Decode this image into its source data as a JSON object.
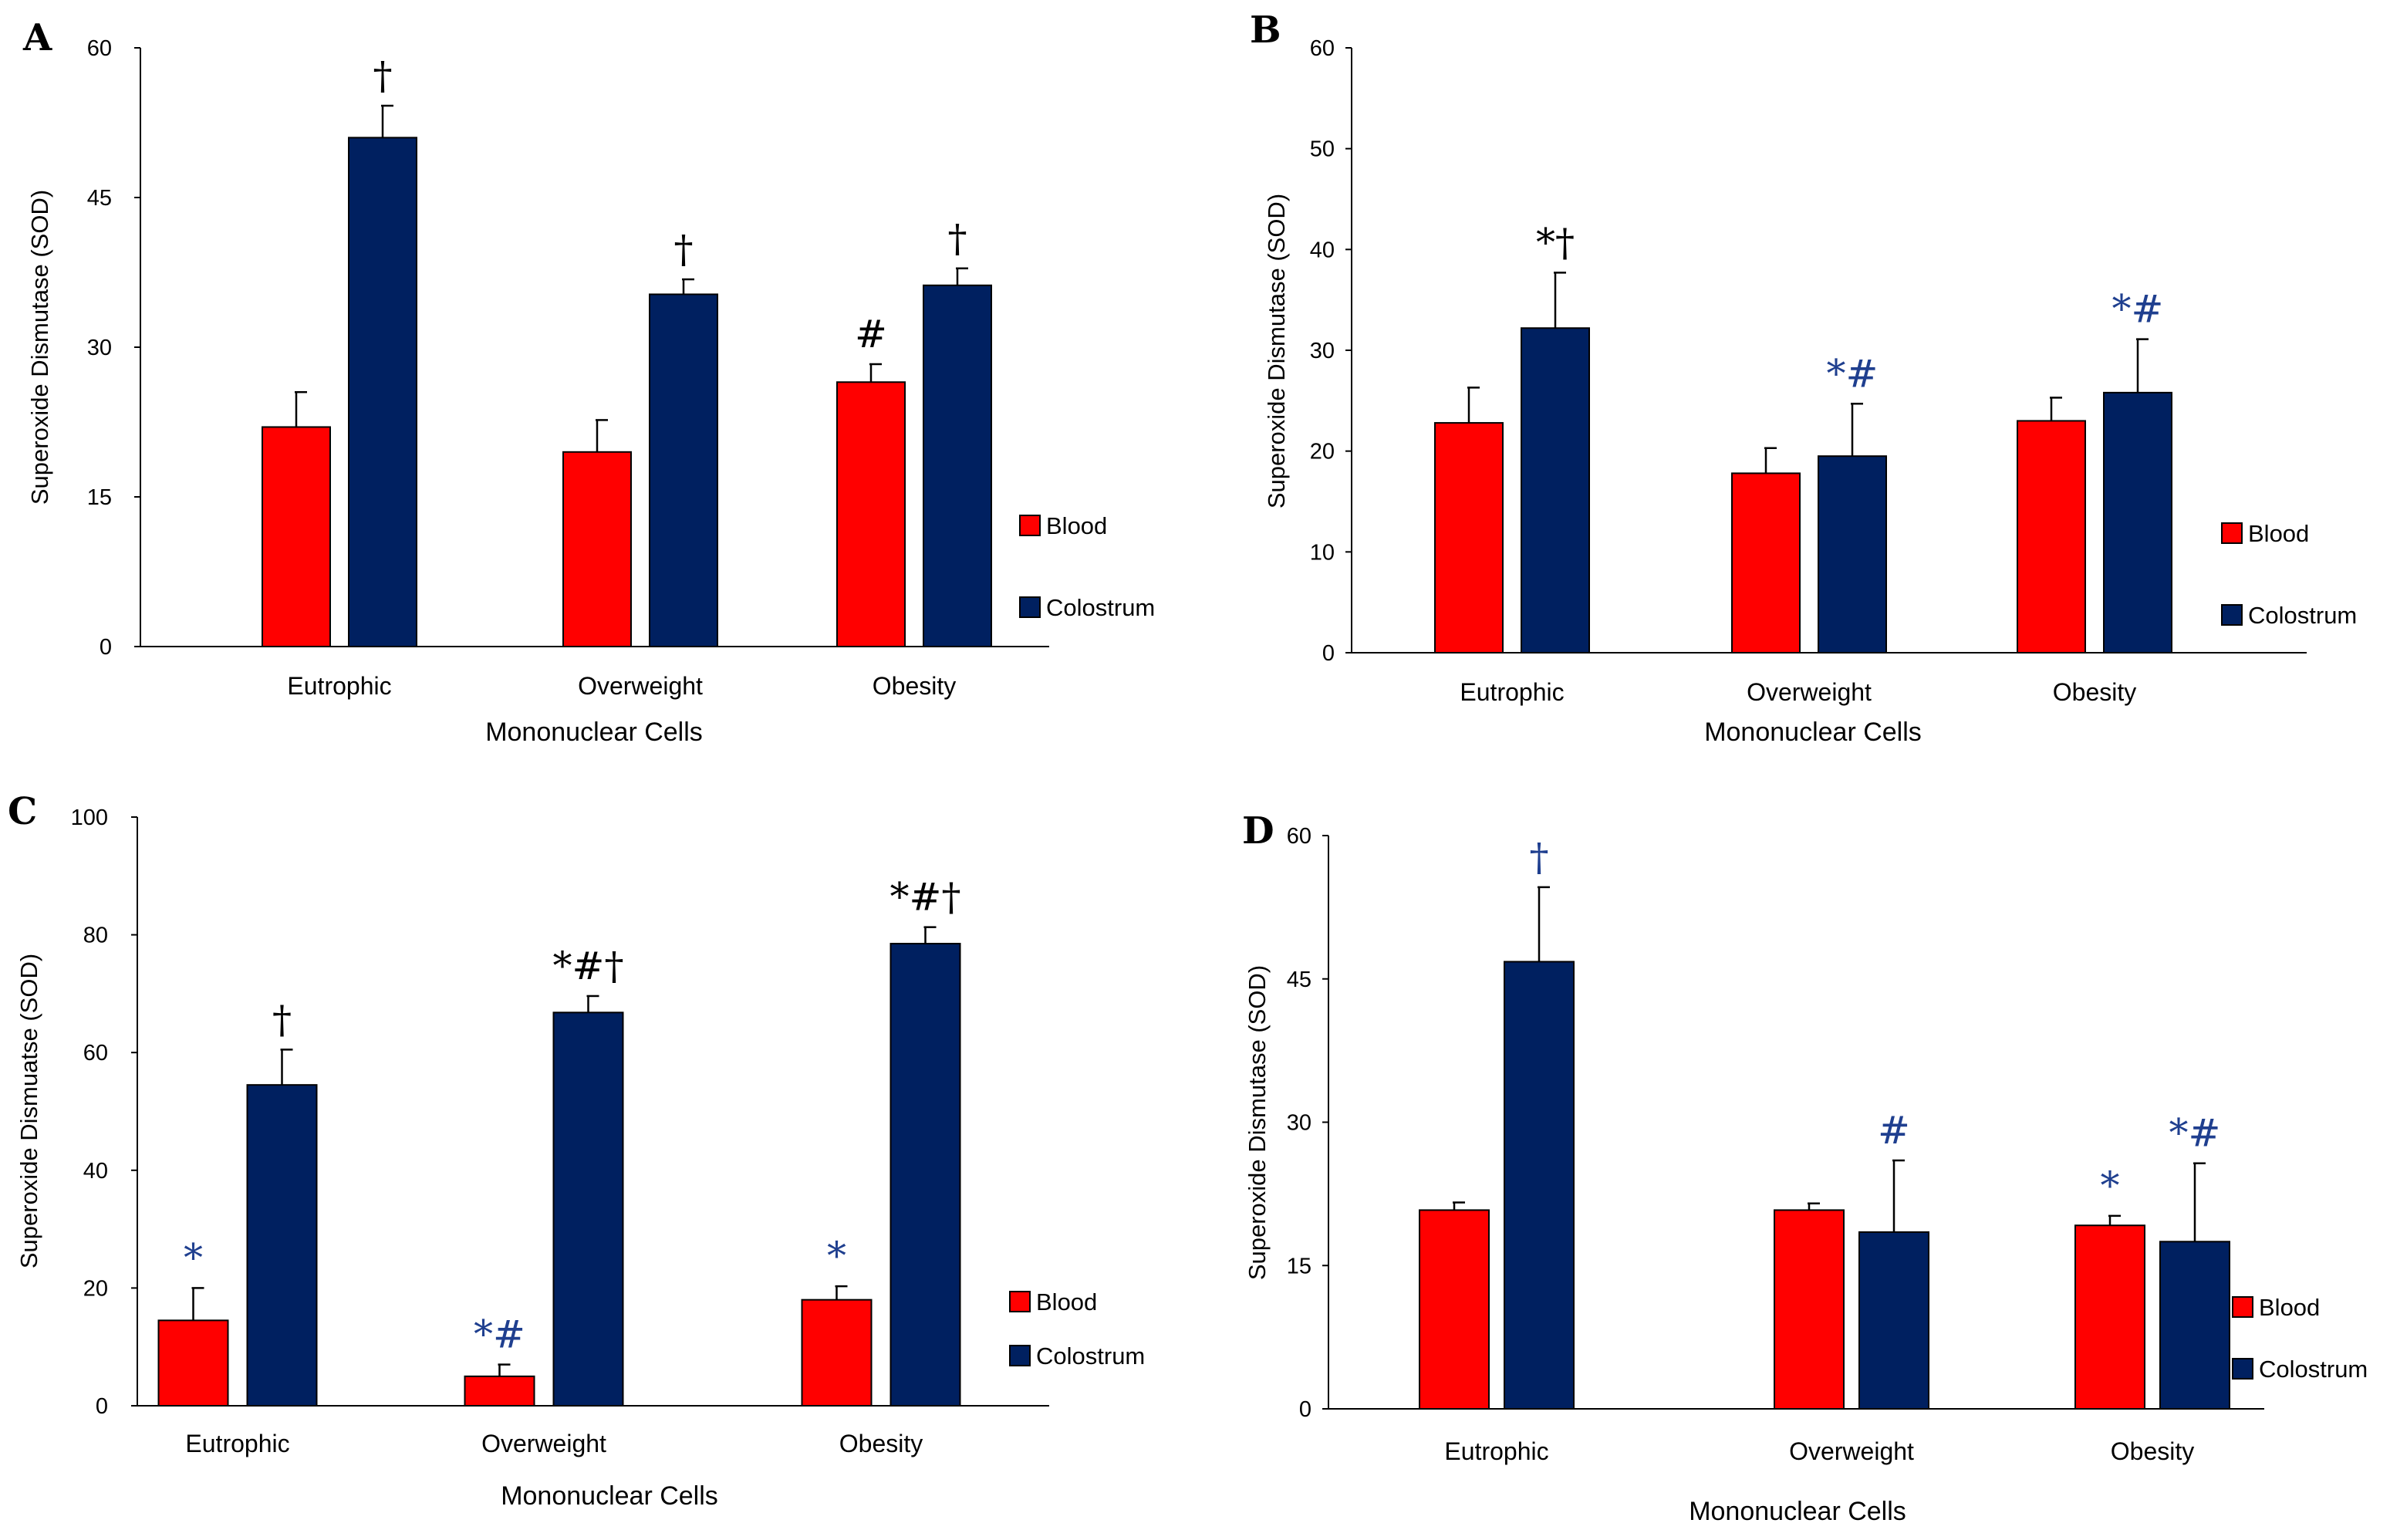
{
  "colors": {
    "blood": "#ff0000",
    "colostrum": "#002060",
    "annotation_blue": "#1f3f8f",
    "annotation_black": "#000000"
  },
  "chart_data": [
    {
      "panel": "A",
      "type": "bar",
      "categories": [
        "Eutrophic",
        "Overweight",
        "Obesity"
      ],
      "xlabel": "Mononuclear Cells",
      "ylabel": "Superoxide Dismutase (SOD)",
      "ylim": [
        0,
        60
      ],
      "yticks": [
        0,
        15,
        30,
        45,
        60
      ],
      "series": [
        {
          "name": "Blood",
          "values": [
            22,
            19.5,
            26.5
          ],
          "errors": [
            3.5,
            3.2,
            1.8
          ]
        },
        {
          "name": "Colostrum",
          "values": [
            51,
            35.3,
            36.2
          ],
          "errors": [
            3.2,
            1.5,
            1.7
          ]
        }
      ],
      "annotations": [
        {
          "category": 0,
          "series": "Colostrum",
          "text": "†",
          "color": "black"
        },
        {
          "category": 1,
          "series": "Colostrum",
          "text": "†",
          "color": "black"
        },
        {
          "category": 2,
          "series": "Blood",
          "text": "#",
          "color": "black"
        },
        {
          "category": 2,
          "series": "Colostrum",
          "text": "†",
          "color": "black"
        }
      ],
      "legend": [
        "Blood",
        "Colostrum"
      ],
      "legend_position": "right"
    },
    {
      "panel": "B",
      "type": "bar",
      "categories": [
        "Eutrophic",
        "Overweight",
        "Obesity"
      ],
      "xlabel": "Mononuclear Cells",
      "ylabel": "Superoxide  Dismutase (SOD)",
      "ylim": [
        0,
        60
      ],
      "yticks": [
        0,
        10,
        20,
        30,
        40,
        50,
        60
      ],
      "series": [
        {
          "name": "Blood",
          "values": [
            22.8,
            17.8,
            23
          ],
          "errors": [
            3.5,
            2.5,
            2.3
          ]
        },
        {
          "name": "Colostrum",
          "values": [
            32.2,
            19.5,
            25.8
          ],
          "errors": [
            5.5,
            5.2,
            5.3
          ]
        }
      ],
      "annotations": [
        {
          "category": 0,
          "series": "Colostrum",
          "text": "*†",
          "color": "black"
        },
        {
          "category": 1,
          "series": "Colostrum",
          "text": "*#",
          "color": "blue"
        },
        {
          "category": 2,
          "series": "Colostrum",
          "text": "*#",
          "color": "blue"
        }
      ],
      "legend": [
        "Blood",
        "Colostrum"
      ],
      "legend_position": "right"
    },
    {
      "panel": "C",
      "type": "bar",
      "categories": [
        "Eutrophic",
        "Overweight",
        "Obesity"
      ],
      "xlabel": "Mononuclear Cells",
      "ylabel": "Superoxide Dismuatse (SOD)",
      "ylim": [
        0,
        100
      ],
      "yticks": [
        0,
        20,
        40,
        60,
        80,
        100
      ],
      "series": [
        {
          "name": "Blood",
          "values": [
            14.5,
            5,
            18
          ],
          "errors": [
            5.5,
            2,
            2.3
          ]
        },
        {
          "name": "Colostrum",
          "values": [
            54.5,
            66.8,
            78.5
          ],
          "errors": [
            6,
            2.8,
            2.8
          ]
        }
      ],
      "annotations": [
        {
          "category": 0,
          "series": "Blood",
          "text": "*",
          "color": "blue"
        },
        {
          "category": 0,
          "series": "Colostrum",
          "text": "†",
          "color": "black"
        },
        {
          "category": 1,
          "series": "Blood",
          "text": "*#",
          "color": "blue"
        },
        {
          "category": 1,
          "series": "Colostrum",
          "text": "*#†",
          "color": "black"
        },
        {
          "category": 2,
          "series": "Blood",
          "text": "*",
          "color": "blue"
        },
        {
          "category": 2,
          "series": "Colostrum",
          "text": "*#†",
          "color": "black"
        }
      ],
      "legend": [
        "Blood",
        "Colostrum"
      ],
      "legend_position": "right"
    },
    {
      "panel": "D",
      "type": "bar",
      "categories": [
        "Eutrophic",
        "Overweight",
        "Obesity"
      ],
      "xlabel": "Mononuclear Cells",
      "ylabel": "Superoxide Dismutase (SOD)",
      "ylim": [
        0,
        60
      ],
      "yticks": [
        0,
        15,
        30,
        45,
        60
      ],
      "series": [
        {
          "name": "Blood",
          "values": [
            20.8,
            20.8,
            19.2
          ],
          "errors": [
            0.8,
            0.7,
            1
          ]
        },
        {
          "name": "Colostrum",
          "values": [
            46.8,
            18.5,
            17.5
          ],
          "errors": [
            7.8,
            7.5,
            8.2
          ]
        }
      ],
      "annotations": [
        {
          "category": 0,
          "series": "Colostrum",
          "text": "†",
          "color": "blue"
        },
        {
          "category": 1,
          "series": "Colostrum",
          "text": "#",
          "color": "blue"
        },
        {
          "category": 2,
          "series": "Blood",
          "text": "*",
          "color": "blue"
        },
        {
          "category": 2,
          "series": "Colostrum",
          "text": "*#",
          "color": "blue"
        }
      ],
      "legend": [
        "Blood",
        "Colostrum"
      ],
      "legend_position": "right"
    }
  ]
}
